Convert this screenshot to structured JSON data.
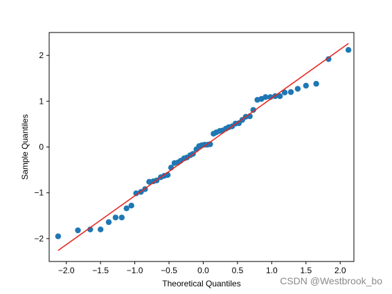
{
  "chart_data": {
    "type": "scatter",
    "xlabel": "Theoretical Quantiles",
    "ylabel": "Sample Quantiles",
    "xlim": [
      -2.25,
      2.2
    ],
    "ylim": [
      -2.5,
      2.5
    ],
    "x_ticks": [
      -2.0,
      -1.5,
      -1.0,
      -0.5,
      0.0,
      0.5,
      1.0,
      1.5,
      2.0
    ],
    "x_tick_labels": [
      "−2.0",
      "−1.5",
      "−1.0",
      "−0.5",
      "0.0",
      "0.5",
      "1.0",
      "1.5",
      "2.0"
    ],
    "y_ticks": [
      -2,
      -1,
      0,
      1,
      2
    ],
    "y_tick_labels": [
      "−2",
      "−1",
      "0",
      "1",
      "2"
    ],
    "grid": false,
    "colors": {
      "points": "#1f77b4",
      "line": "#e8251f",
      "axes": "#000000"
    },
    "reference_line": {
      "x": [
        -2.12,
        2.12
      ],
      "y": [
        -2.26,
        2.26
      ]
    },
    "points": [
      [
        -2.12,
        -1.95
      ],
      [
        -1.83,
        -1.82
      ],
      [
        -1.65,
        -1.8
      ],
      [
        -1.5,
        -1.8
      ],
      [
        -1.38,
        -1.64
      ],
      [
        -1.28,
        -1.54
      ],
      [
        -1.19,
        -1.54
      ],
      [
        -1.12,
        -1.34
      ],
      [
        -1.05,
        -1.28
      ],
      [
        -0.98,
        -1.01
      ],
      [
        -0.91,
        -0.98
      ],
      [
        -0.85,
        -0.92
      ],
      [
        -0.79,
        -0.76
      ],
      [
        -0.73,
        -0.75
      ],
      [
        -0.68,
        -0.73
      ],
      [
        -0.62,
        -0.66
      ],
      [
        -0.57,
        -0.63
      ],
      [
        -0.52,
        -0.61
      ],
      [
        -0.47,
        -0.45
      ],
      [
        -0.42,
        -0.35
      ],
      [
        -0.37,
        -0.34
      ],
      [
        -0.33,
        -0.3
      ],
      [
        -0.28,
        -0.25
      ],
      [
        -0.24,
        -0.23
      ],
      [
        -0.19,
        -0.18
      ],
      [
        -0.15,
        -0.15
      ],
      [
        -0.1,
        -0.05
      ],
      [
        -0.06,
        0.02
      ],
      [
        -0.02,
        0.04
      ],
      [
        0.02,
        0.05
      ],
      [
        0.06,
        0.05
      ],
      [
        0.1,
        0.06
      ],
      [
        0.15,
        0.29
      ],
      [
        0.19,
        0.32
      ],
      [
        0.24,
        0.35
      ],
      [
        0.28,
        0.36
      ],
      [
        0.33,
        0.4
      ],
      [
        0.37,
        0.43
      ],
      [
        0.42,
        0.45
      ],
      [
        0.47,
        0.51
      ],
      [
        0.52,
        0.52
      ],
      [
        0.57,
        0.59
      ],
      [
        0.62,
        0.66
      ],
      [
        0.68,
        0.67
      ],
      [
        0.73,
        0.81
      ],
      [
        0.79,
        1.03
      ],
      [
        0.85,
        1.05
      ],
      [
        0.91,
        1.09
      ],
      [
        0.98,
        1.09
      ],
      [
        1.05,
        1.11
      ],
      [
        1.12,
        1.11
      ],
      [
        1.19,
        1.19
      ],
      [
        1.28,
        1.2
      ],
      [
        1.38,
        1.27
      ],
      [
        1.5,
        1.34
      ],
      [
        1.65,
        1.38
      ],
      [
        1.83,
        1.92
      ],
      [
        2.12,
        2.12
      ]
    ]
  },
  "watermark": "CSDN @Westbrook_bo"
}
